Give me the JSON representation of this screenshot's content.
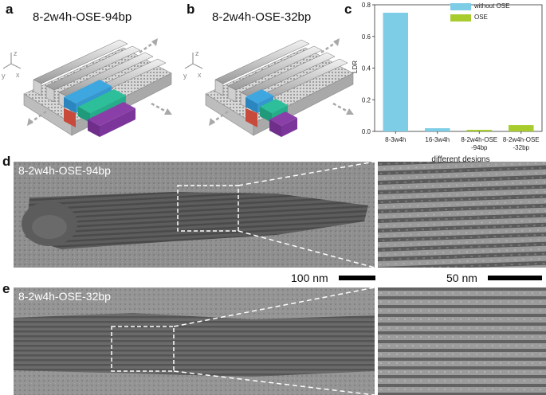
{
  "panels": {
    "a": {
      "letter": "a",
      "title": "8-2w4h-OSE-94bp"
    },
    "b": {
      "letter": "b",
      "title": "8-2w4h-OSE-32bp"
    },
    "c": {
      "letter": "c"
    },
    "d": {
      "letter": "d",
      "label": "8-2w4h-OSE-94bp",
      "scale_left": "100 nm",
      "scale_right": "50 nm"
    },
    "e": {
      "letter": "e",
      "label": "8-2w4h-OSE-32bp"
    }
  },
  "axes_glyphs": {
    "z": "z",
    "y": "y",
    "x": "x"
  },
  "colors": {
    "without_ose": "#7ecde6",
    "ose": "#a8cc2e",
    "blue_block": "#3fa7e0",
    "green_block": "#2cbf9a",
    "purple_block": "#8a3fa8",
    "red_block": "#c84a3a"
  },
  "chart_data": {
    "type": "bar",
    "categories": [
      "8-3w4h",
      "16-3w4h",
      "8-2w4h-OSE\n-94bp",
      "8-2w4h-OSE\n-32bp"
    ],
    "category_lines": [
      [
        "8-3w4h"
      ],
      [
        "16-3w4h"
      ],
      [
        "8-2w4h-OSE",
        "-94bp"
      ],
      [
        "8-2w4h-OSE",
        "-32bp"
      ]
    ],
    "series": [
      {
        "name": "without OSE",
        "values": [
          0.75,
          0.02,
          null,
          null
        ],
        "color": "#7ecde6"
      },
      {
        "name": "OSE",
        "values": [
          null,
          null,
          0.01,
          0.04
        ],
        "color": "#a8cc2e"
      }
    ],
    "xlabel": "different designs",
    "ylabel": "LDR",
    "ylim": [
      0,
      0.8
    ],
    "yticks": [
      "0.0",
      "0.2",
      "0.4",
      "0.6",
      "0.8"
    ],
    "legend": "top-right",
    "grid": false
  }
}
